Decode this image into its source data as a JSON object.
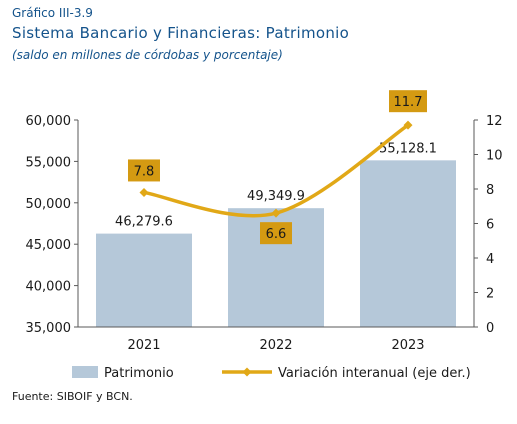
{
  "header": {
    "figure_label": "Gráfico III-3.9",
    "title": "Sistema Bancario y Financieras: Patrimonio",
    "subtitle": "(saldo en millones de córdobas y porcentaje)"
  },
  "source": "Fuente: SIBOIF y BCN.",
  "colors": {
    "bars": "#b5c8d9",
    "line": "#e1a817",
    "label_box": "#d49a12",
    "axis_text": "#1a1a1a"
  },
  "chart_data": {
    "type": "bar",
    "categories": [
      "2021",
      "2022",
      "2023"
    ],
    "series": [
      {
        "name": "Patrimonio",
        "type": "bar",
        "axis": "left",
        "values": [
          46279.6,
          49349.9,
          55128.1
        ],
        "labels": [
          "46,279.6",
          "49,349.9",
          "55,128.1"
        ]
      },
      {
        "name": "Variación interanual (eje der.)",
        "type": "line",
        "axis": "right",
        "values": [
          7.8,
          6.6,
          11.7
        ],
        "labels": [
          "7.8",
          "6.6",
          "11.7"
        ]
      }
    ],
    "y_left": {
      "ylim": [
        35000,
        60000
      ],
      "ticks": [
        "35,000",
        "40,000",
        "45,000",
        "50,000",
        "55,000",
        "60,000"
      ]
    },
    "y_right": {
      "ylim": [
        0,
        12
      ],
      "ticks": [
        "0",
        "2",
        "4",
        "6",
        "8",
        "10",
        "12"
      ]
    },
    "legend_position": "bottom",
    "grid": false
  }
}
